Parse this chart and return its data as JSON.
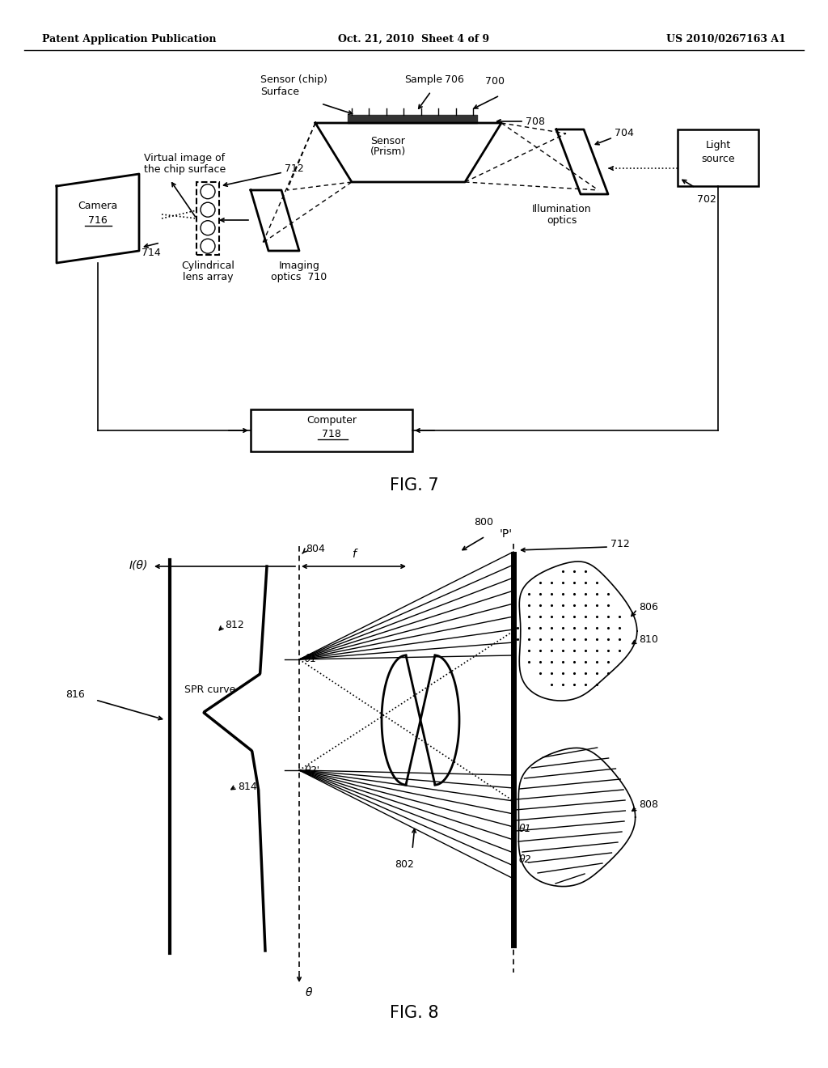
{
  "bg_color": "#ffffff",
  "line_color": "#000000",
  "header_left": "Patent Application Publication",
  "header_mid": "Oct. 21, 2010  Sheet 4 of 9",
  "header_right": "US 2010/0267163 A1"
}
